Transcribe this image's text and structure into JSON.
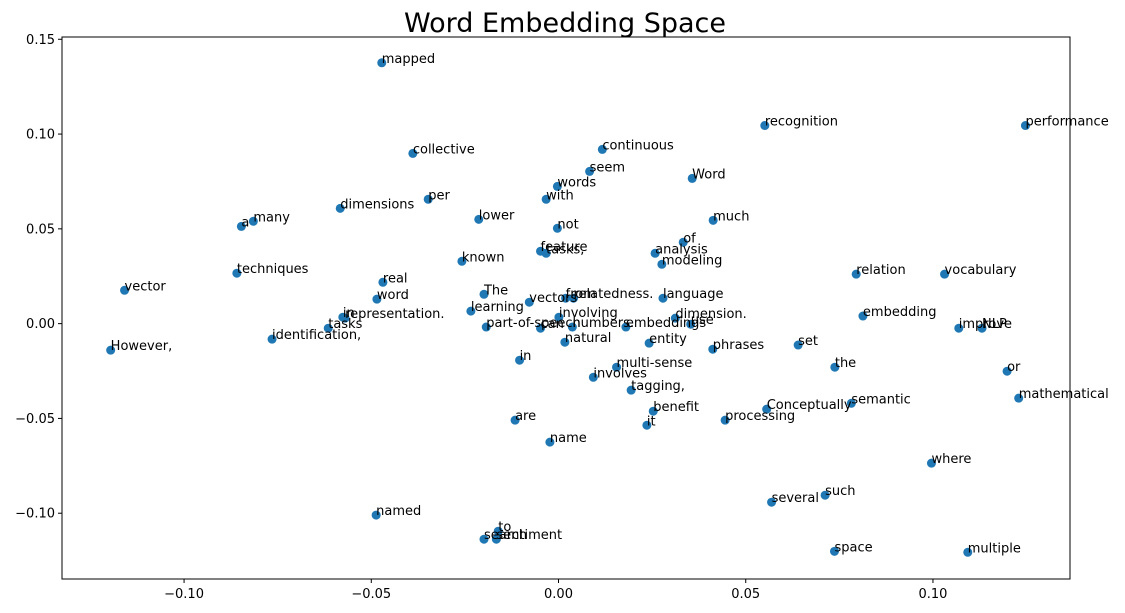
{
  "chart_data": {
    "type": "scatter",
    "title": "Word Embedding Space",
    "xlabel": "",
    "ylabel": "",
    "xlim": [
      -0.1326,
      0.1366
    ],
    "ylim": [
      -0.1347,
      0.1512
    ],
    "x_ticks": [
      -0.1,
      -0.05,
      0.0,
      0.05,
      0.1
    ],
    "x_tick_labels": [
      "−0.10",
      "−0.05",
      "0.00",
      "0.05",
      "0.10"
    ],
    "y_ticks": [
      -0.1,
      -0.05,
      0.0,
      0.05,
      0.1,
      0.15
    ],
    "y_tick_labels": [
      "−0.10",
      "−0.05",
      "0.00",
      "0.05",
      "0.10",
      "0.15"
    ],
    "grid": false,
    "marker_color": "#1f77b4",
    "points": [
      {
        "label": "mapped",
        "x": -0.0472,
        "y": 0.1376
      },
      {
        "label": "recognition",
        "x": 0.0551,
        "y": 0.1045
      },
      {
        "label": "performance",
        "x": 0.1247,
        "y": 0.1045
      },
      {
        "label": "continuous",
        "x": 0.0117,
        "y": 0.0919
      },
      {
        "label": "collective",
        "x": -0.0389,
        "y": 0.0898
      },
      {
        "label": "seem",
        "x": 0.0083,
        "y": 0.0803
      },
      {
        "label": "Word",
        "x": 0.0357,
        "y": 0.0766
      },
      {
        "label": "words",
        "x": -0.0003,
        "y": 0.0724
      },
      {
        "label": "per",
        "x": -0.0348,
        "y": 0.0656
      },
      {
        "label": "with",
        "x": -0.0033,
        "y": 0.0656
      },
      {
        "label": "dimensions",
        "x": -0.0583,
        "y": 0.0608
      },
      {
        "label": "lower",
        "x": -0.0213,
        "y": 0.055
      },
      {
        "label": "much",
        "x": 0.0413,
        "y": 0.0545
      },
      {
        "label": "many",
        "x": -0.0815,
        "y": 0.054
      },
      {
        "label": "a",
        "x": -0.0847,
        "y": 0.0513
      },
      {
        "label": "not",
        "x": -0.0003,
        "y": 0.0503
      },
      {
        "label": "of",
        "x": 0.0333,
        "y": 0.0429
      },
      {
        "label": "feature",
        "x": -0.0048,
        "y": 0.0382
      },
      {
        "label": "tasks,",
        "x": -0.0033,
        "y": 0.0371
      },
      {
        "label": "analysis",
        "x": 0.0258,
        "y": 0.0371
      },
      {
        "label": "known",
        "x": -0.0258,
        "y": 0.0329
      },
      {
        "label": "modeling",
        "x": 0.0276,
        "y": 0.0313
      },
      {
        "label": "techniques",
        "x": -0.0859,
        "y": 0.0266
      },
      {
        "label": "relation",
        "x": 0.0795,
        "y": 0.0261
      },
      {
        "label": "vocabulary",
        "x": 0.1031,
        "y": 0.0261
      },
      {
        "label": "real",
        "x": -0.0469,
        "y": 0.0218
      },
      {
        "label": "vector",
        "x": -0.1159,
        "y": 0.0176
      },
      {
        "label": "The",
        "x": -0.0199,
        "y": 0.0155
      },
      {
        "label": "from",
        "x": 0.0019,
        "y": 0.0134
      },
      {
        "label": "relatedness.",
        "x": 0.004,
        "y": 0.0134
      },
      {
        "label": "language",
        "x": 0.0279,
        "y": 0.0134
      },
      {
        "label": "word",
        "x": -0.0485,
        "y": 0.0129
      },
      {
        "label": "vectors",
        "x": -0.0078,
        "y": 0.0113
      },
      {
        "label": "learning",
        "x": -0.0234,
        "y": 0.0066
      },
      {
        "label": "embedding",
        "x": 0.0813,
        "y": 0.004
      },
      {
        "label": "involving",
        "x": 0.0001,
        "y": 0.0034
      },
      {
        "label": "in",
        "x": -0.0576,
        "y": 0.0034
      },
      {
        "label": "representation.",
        "x": -0.057,
        "y": 0.0029
      },
      {
        "label": "dimension.",
        "x": 0.0312,
        "y": 0.0029
      },
      {
        "label": "use",
        "x": 0.0353,
        "y": -0.0003
      },
      {
        "label": "tasks",
        "x": -0.0615,
        "y": -0.0024
      },
      {
        "label": "part-of-speech",
        "x": -0.0193,
        "y": -0.0018
      },
      {
        "label": "can",
        "x": -0.0048,
        "y": -0.0024
      },
      {
        "label": "numbers.",
        "x": 0.0037,
        "y": -0.0018
      },
      {
        "label": "embeddings",
        "x": 0.018,
        "y": -0.0018
      },
      {
        "label": "improve",
        "x": 0.1069,
        "y": -0.0024
      },
      {
        "label": "NLP",
        "x": 0.1131,
        "y": -0.0024
      },
      {
        "label": "identification,",
        "x": -0.0765,
        "y": -0.0082
      },
      {
        "label": "natural",
        "x": 0.0017,
        "y": -0.0098
      },
      {
        "label": "entity",
        "x": 0.0242,
        "y": -0.0103
      },
      {
        "label": "set",
        "x": 0.064,
        "y": -0.0113
      },
      {
        "label": "phrases",
        "x": 0.0412,
        "y": -0.0135
      },
      {
        "label": "However,",
        "x": -0.1196,
        "y": -0.014
      },
      {
        "label": "in",
        "x": -0.0104,
        "y": -0.0193
      },
      {
        "label": "the",
        "x": 0.0738,
        "y": -0.023
      },
      {
        "label": "multi-sense",
        "x": 0.0155,
        "y": -0.023
      },
      {
        "label": "or",
        "x": 0.1198,
        "y": -0.0251
      },
      {
        "label": "involves",
        "x": 0.0093,
        "y": -0.0283
      },
      {
        "label": "tagging,",
        "x": 0.0194,
        "y": -0.0351
      },
      {
        "label": "mathematical",
        "x": 0.1229,
        "y": -0.0393
      },
      {
        "label": "semantic",
        "x": 0.0782,
        "y": -0.042
      },
      {
        "label": "Conceptually",
        "x": 0.0556,
        "y": -0.0451
      },
      {
        "label": "benefit",
        "x": 0.0253,
        "y": -0.0462
      },
      {
        "label": "are",
        "x": -0.0116,
        "y": -0.0509
      },
      {
        "label": "processing",
        "x": 0.0445,
        "y": -0.0509
      },
      {
        "label": "it",
        "x": 0.0236,
        "y": -0.0536
      },
      {
        "label": "name",
        "x": -0.0023,
        "y": -0.0625
      },
      {
        "label": "where",
        "x": 0.0996,
        "y": -0.0736
      },
      {
        "label": "such",
        "x": 0.0712,
        "y": -0.0905
      },
      {
        "label": "several",
        "x": 0.0569,
        "y": -0.0942
      },
      {
        "label": "named",
        "x": -0.0487,
        "y": -0.101
      },
      {
        "label": "to",
        "x": -0.0161,
        "y": -0.1095
      },
      {
        "label": "search",
        "x": -0.0199,
        "y": -0.1137
      },
      {
        "label": "sentiment",
        "x": -0.0166,
        "y": -0.1137
      },
      {
        "label": "space",
        "x": 0.0737,
        "y": -0.1201
      },
      {
        "label": "multiple",
        "x": 0.1093,
        "y": -0.1206
      }
    ]
  }
}
